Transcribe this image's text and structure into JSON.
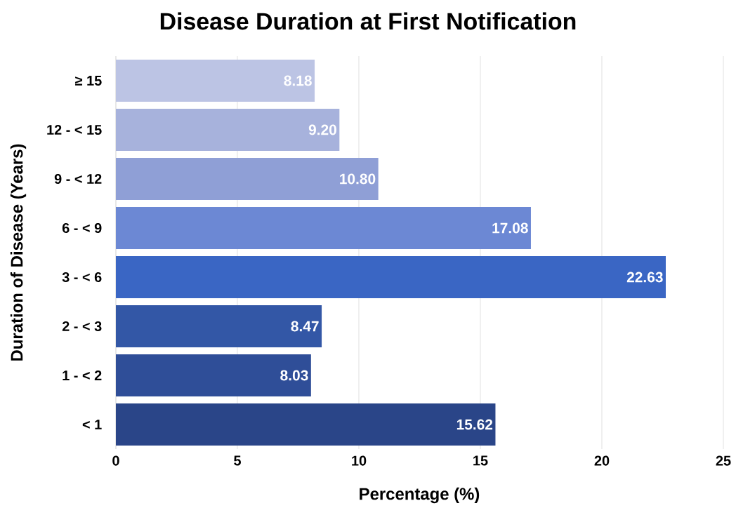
{
  "chart_data": {
    "type": "bar",
    "orientation": "horizontal",
    "title": "Disease Duration at First Notification",
    "xlabel": "Percentage (%)",
    "ylabel": "Duration of Disease (Years)",
    "categories": [
      "≥ 15",
      "12 - < 15",
      "9 - < 12",
      "6 - < 9",
      "3 - < 6",
      "2 - < 3",
      "1 - < 2",
      "< 1"
    ],
    "values": [
      8.18,
      9.2,
      10.8,
      17.08,
      22.63,
      8.47,
      8.03,
      15.62
    ],
    "value_labels": [
      "8.18",
      "9.20",
      "10.80",
      "17.08",
      "22.63",
      "8.47",
      "8.03",
      "15.62"
    ],
    "colors": [
      "#bcc4e4",
      "#a7b2dc",
      "#8f9fd6",
      "#6c88d4",
      "#3a66c4",
      "#3357a6",
      "#2f4e98",
      "#2a4588"
    ],
    "xlim": [
      0,
      25
    ],
    "xticks": [
      0,
      5,
      10,
      15,
      20,
      25
    ],
    "grid": "x"
  }
}
